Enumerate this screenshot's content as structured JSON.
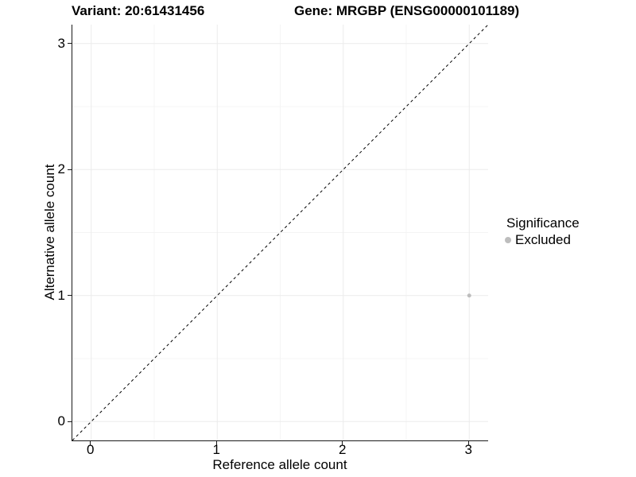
{
  "titles": {
    "variant": "Variant: 20:61431456",
    "gene": "Gene: MRGBP (ENSG00000101189)"
  },
  "chart_data": {
    "type": "scatter",
    "title": "Variant: 20:61431456  /  Gene: MRGBP (ENSG00000101189)",
    "xlabel": "Reference allele count",
    "ylabel": "Alternative allele count",
    "xlim": [
      -0.15,
      3.15
    ],
    "ylim": [
      -0.15,
      3.15
    ],
    "x_ticks": [
      0,
      1,
      2,
      3
    ],
    "y_ticks": [
      0,
      1,
      2,
      3
    ],
    "minor_ticks": [
      0.5,
      1.5,
      2.5
    ],
    "grid": true,
    "points": [
      {
        "x": 3,
        "y": 1,
        "series": "Excluded"
      }
    ],
    "reference_line": {
      "slope": 1,
      "intercept": 0,
      "style": "dashed",
      "color": "#000000"
    },
    "legend": {
      "title": "Significance",
      "position": "right",
      "items": [
        {
          "label": "Excluded",
          "color": "#bdbdbd"
        }
      ]
    },
    "colors": {
      "point": "#bdbdbd",
      "grid_major": "#ebebeb",
      "grid_minor": "#f4f4f4",
      "axis": "#1a1a1a",
      "background": "#ffffff"
    }
  }
}
